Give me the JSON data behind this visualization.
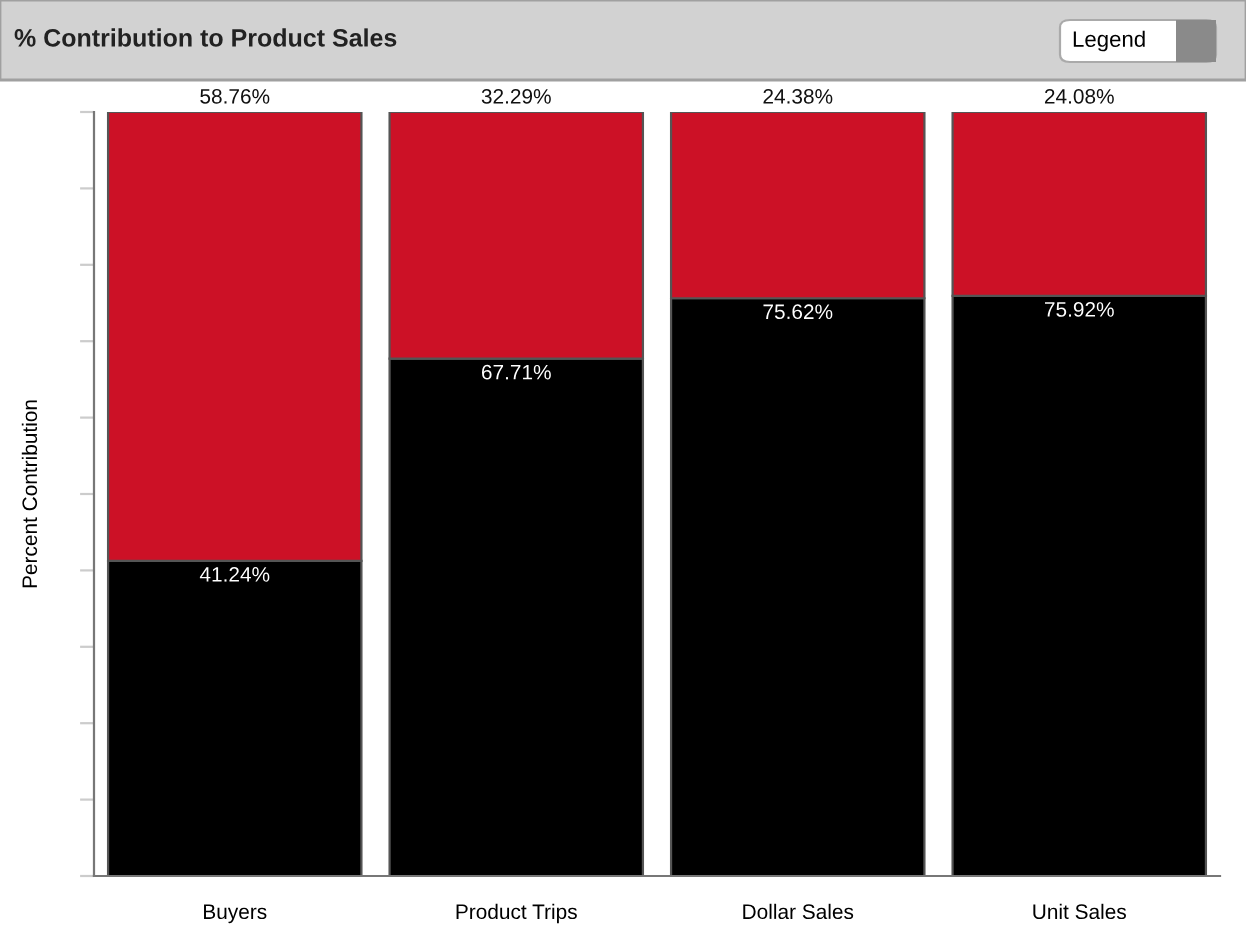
{
  "chart_data": {
    "type": "bar",
    "stacked": true,
    "title": "% Contribution to Product Sales",
    "ylabel": "Percent Contribution",
    "categories": [
      "Buyers",
      "Product Trips",
      "Dollar Sales",
      "Unit Sales"
    ],
    "series": [
      {
        "color": "#000000",
        "values": [
          41.24,
          67.71,
          75.62,
          75.92
        ],
        "value_labels": [
          "41.24%",
          "67.71%",
          "75.62%",
          "75.92%"
        ]
      },
      {
        "color": "#cc1126",
        "values": [
          58.76,
          32.29,
          24.38,
          24.08
        ],
        "value_labels": [
          "58.76%",
          "32.29%",
          "24.38%",
          "24.08%"
        ]
      }
    ],
    "ylim": [
      0,
      100
    ],
    "yticks": [
      {
        "value": 0,
        "label": null
      },
      {
        "value": 10,
        "label": null
      },
      {
        "value": 20,
        "label": null
      },
      {
        "value": 30,
        "label": null
      },
      {
        "value": 40,
        "label": null
      },
      {
        "value": 50,
        "label": null
      },
      {
        "value": 60,
        "label": null
      },
      {
        "value": 70,
        "label": null
      },
      {
        "value": 80,
        "label": null
      },
      {
        "value": 90,
        "label": null
      },
      {
        "value": 100,
        "label": null
      }
    ],
    "tick_labels": "x",
    "grid": false,
    "annotations": [
      "Legend"
    ]
  }
}
